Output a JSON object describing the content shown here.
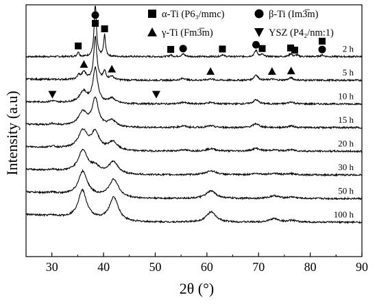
{
  "chart_data": {
    "type": "line",
    "xlabel": "2θ (°)",
    "ylabel": "Intensity (a.u)",
    "xlim": [
      25,
      90
    ],
    "xticks": [
      30,
      40,
      50,
      60,
      70,
      80,
      90
    ],
    "yticks_shown": false,
    "series": [
      {
        "name": "2 h",
        "offset": 7,
        "base": 0.05,
        "peaks": [
          [
            35.1,
            0.35,
            0.22
          ],
          [
            38.4,
            4.0,
            0.25
          ],
          [
            40.2,
            1.55,
            0.22
          ],
          [
            53.0,
            0.12,
            0.3
          ],
          [
            55.4,
            0.18,
            0.4
          ],
          [
            63.0,
            0.15,
            0.3
          ],
          [
            69.5,
            0.45,
            0.35
          ],
          [
            70.7,
            0.15,
            0.3
          ],
          [
            76.2,
            0.22,
            0.3
          ],
          [
            77.4,
            0.12,
            0.3
          ],
          [
            82.3,
            0.12,
            0.35
          ]
        ]
      },
      {
        "name": "5 h",
        "offset": 6,
        "base": 0.05,
        "peaks": [
          [
            35.2,
            0.3,
            0.3
          ],
          [
            36.2,
            0.55,
            0.5
          ],
          [
            38.4,
            3.2,
            0.35
          ],
          [
            40.2,
            0.6,
            0.3
          ],
          [
            41.6,
            0.25,
            0.5
          ],
          [
            55.4,
            0.15,
            0.5
          ],
          [
            60.7,
            0.1,
            0.6
          ],
          [
            69.5,
            0.4,
            0.45
          ],
          [
            72.6,
            0.08,
            0.6
          ],
          [
            76.3,
            0.18,
            0.5
          ]
        ]
      },
      {
        "name": "10 h",
        "offset": 5,
        "base": 0.05,
        "peaks": [
          [
            30.1,
            0.1,
            0.5
          ],
          [
            36.1,
            0.8,
            0.9
          ],
          [
            38.4,
            2.5,
            0.55
          ],
          [
            41.6,
            0.35,
            0.8
          ],
          [
            55.4,
            0.12,
            0.6
          ],
          [
            60.7,
            0.1,
            0.8
          ],
          [
            69.5,
            0.3,
            0.6
          ],
          [
            76.3,
            0.15,
            0.6
          ]
        ]
      },
      {
        "name": "15 h",
        "offset": 4,
        "base": 0.05,
        "peaks": [
          [
            30.1,
            0.1,
            0.6
          ],
          [
            36.0,
            1.0,
            1.0
          ],
          [
            38.4,
            2.0,
            0.7
          ],
          [
            41.7,
            0.45,
            0.9
          ],
          [
            55.4,
            0.12,
            0.7
          ],
          [
            60.7,
            0.12,
            0.9
          ],
          [
            69.5,
            0.28,
            0.7
          ],
          [
            76.3,
            0.12,
            0.7
          ]
        ]
      },
      {
        "name": "20 h",
        "offset": 3,
        "base": 0.05,
        "peaks": [
          [
            30.1,
            0.1,
            0.7
          ],
          [
            36.0,
            1.3,
            1.1
          ],
          [
            38.4,
            1.2,
            0.9
          ],
          [
            41.8,
            0.6,
            1.0
          ],
          [
            55.4,
            0.1,
            0.8
          ],
          [
            60.8,
            0.18,
            1.1
          ],
          [
            69.5,
            0.2,
            0.9
          ],
          [
            73.0,
            0.08,
            1.0
          ],
          [
            76.3,
            0.1,
            0.9
          ]
        ]
      },
      {
        "name": "30 h",
        "offset": 2,
        "base": 0.05,
        "peaks": [
          [
            30.1,
            0.08,
            0.8
          ],
          [
            36.0,
            1.6,
            1.1
          ],
          [
            38.4,
            0.4,
            0.9
          ],
          [
            41.9,
            0.85,
            1.1
          ],
          [
            60.8,
            0.3,
            1.2
          ],
          [
            69.6,
            0.1,
            1.0
          ],
          [
            73.0,
            0.1,
            1.1
          ],
          [
            76.5,
            0.08,
            1.0
          ]
        ]
      },
      {
        "name": "50 h",
        "offset": 1,
        "base": 0.05,
        "peaks": [
          [
            30.1,
            0.08,
            0.8
          ],
          [
            36.0,
            1.75,
            1.05
          ],
          [
            42.0,
            1.3,
            1.1
          ],
          [
            60.8,
            0.55,
            1.15
          ],
          [
            73.0,
            0.2,
            1.1
          ],
          [
            76.5,
            0.1,
            1.0
          ]
        ]
      },
      {
        "name": "100 h",
        "offset": 0,
        "base": 0.05,
        "peaks": [
          [
            30.1,
            0.08,
            0.8
          ],
          [
            35.9,
            2.05,
            1.0
          ],
          [
            42.0,
            1.7,
            1.05
          ],
          [
            60.8,
            0.75,
            1.1
          ],
          [
            73.0,
            0.25,
            1.1
          ],
          [
            76.5,
            0.12,
            1.0
          ]
        ]
      }
    ],
    "legend": {
      "position": "top-right",
      "entries": [
        {
          "marker": "square",
          "label": "α-Ti (P6₃/mmc)"
        },
        {
          "marker": "circle",
          "label": "β-Ti (Im3̅m)"
        },
        {
          "marker": "triangle-up",
          "label": "γ-Ti (Fm3̅m)"
        },
        {
          "marker": "triangle-down",
          "label": "YSZ (P4₂/nm:1)"
        }
      ]
    },
    "annotations": {
      "series": "2 h",
      "markers": [
        {
          "marker": "square",
          "x": 35.1
        },
        {
          "marker": "square",
          "x": 38.4
        },
        {
          "marker": "circle",
          "x": 38.4
        },
        {
          "marker": "square",
          "x": 40.2
        },
        {
          "marker": "square",
          "x": 53.0
        },
        {
          "marker": "circle",
          "x": 55.4
        },
        {
          "marker": "square",
          "x": 63.0
        },
        {
          "marker": "circle",
          "x": 69.5
        },
        {
          "marker": "square",
          "x": 70.7
        },
        {
          "marker": "square",
          "x": 76.2
        },
        {
          "marker": "square",
          "x": 77.0
        },
        {
          "marker": "circle",
          "x": 82.3
        },
        {
          "marker": "square",
          "x": 82.3
        }
      ],
      "gamma_markers": [
        {
          "marker": "triangle-up",
          "x": 36.2
        },
        {
          "marker": "triangle-up",
          "x": 41.6
        },
        {
          "marker": "triangle-up",
          "x": 60.7
        },
        {
          "marker": "triangle-up",
          "x": 72.6
        },
        {
          "marker": "triangle-up",
          "x": 76.3
        }
      ],
      "ysz_markers": [
        {
          "marker": "triangle-down",
          "x": 30.1
        },
        {
          "marker": "triangle-down",
          "x": 50.2
        }
      ]
    }
  }
}
